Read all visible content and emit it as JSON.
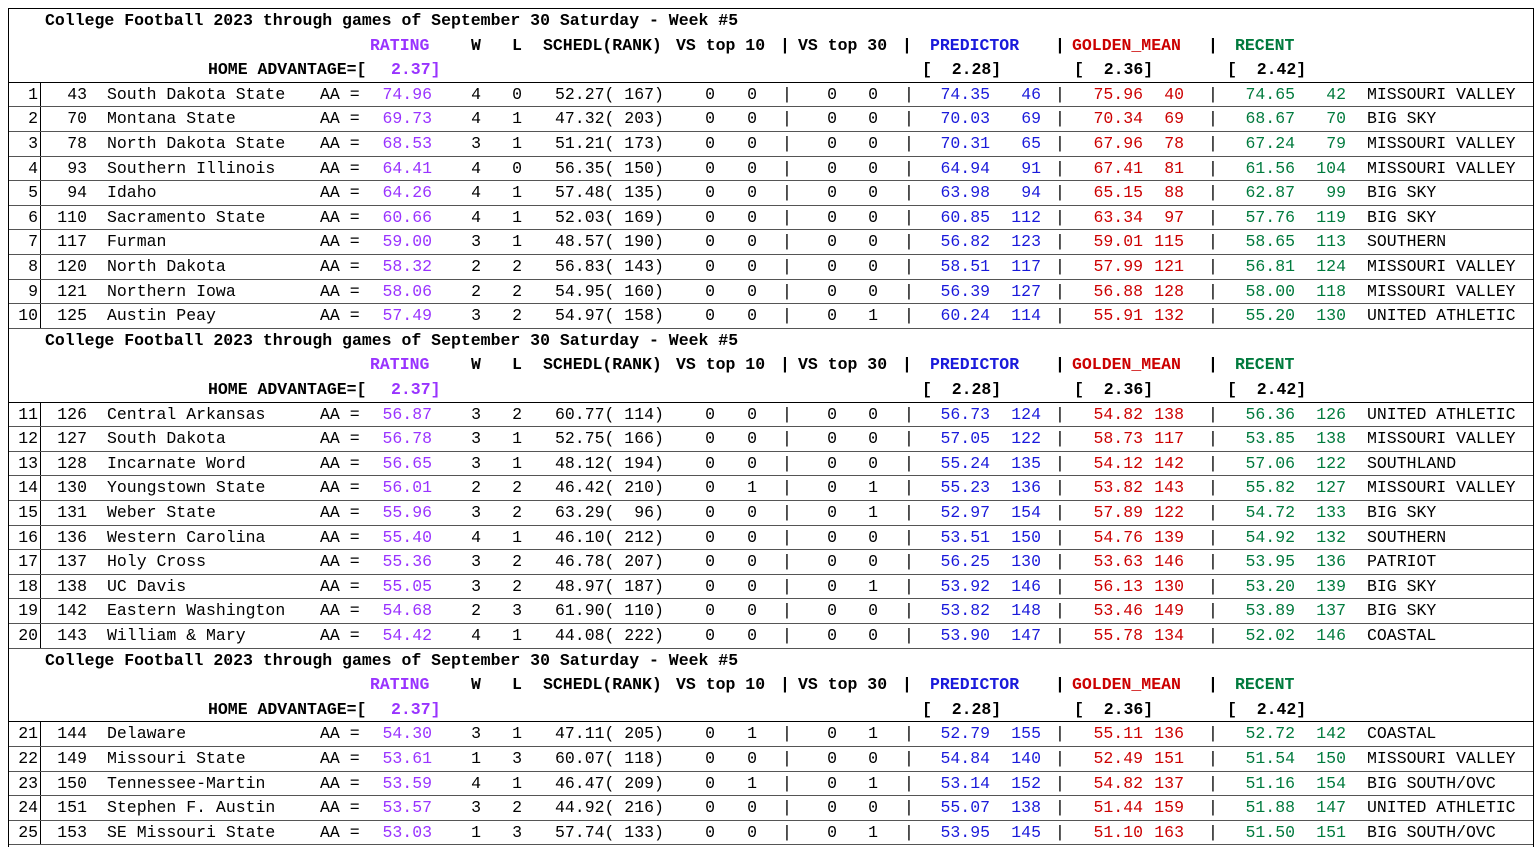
{
  "header": {
    "title": "College Football 2023 through games of September 30 Saturday - Week #5",
    "rating_label": "RATING",
    "w_label": "W",
    "l_label": "L",
    "schedl_label": "SCHEDL(RANK)",
    "vs10_label": "VS top 10",
    "vs30_label": "VS top 30",
    "predictor_label": "PREDICTOR",
    "golden_label": "GOLDEN_MEAN",
    "recent_label": "RECENT",
    "home_adv_label": "HOME ADVANTAGE=[",
    "home_adv_value": "2.37]",
    "predictor_adv": "[  2.28]",
    "golden_adv": "[  2.36]",
    "recent_adv": "[  2.42]",
    "pipe": "|",
    "aa": "AA ="
  },
  "colors": {
    "rating": "#9933ff",
    "predictor": "#1a1adb",
    "golden": "#cc0000",
    "recent": "#007a3d"
  },
  "rows": [
    [
      "1",
      "43",
      "South Dakota State",
      "74.96",
      "4",
      "0",
      "52.27( 167)",
      "0",
      "0",
      "0",
      "0",
      "74.35",
      "46",
      "75.96",
      "40",
      "74.65",
      "42",
      "MISSOURI VALLEY"
    ],
    [
      "2",
      "70",
      "Montana State",
      "69.73",
      "4",
      "1",
      "47.32( 203)",
      "0",
      "0",
      "0",
      "0",
      "70.03",
      "69",
      "70.34",
      "69",
      "68.67",
      "70",
      "BIG SKY"
    ],
    [
      "3",
      "78",
      "North Dakota State",
      "68.53",
      "3",
      "1",
      "51.21( 173)",
      "0",
      "0",
      "0",
      "0",
      "70.31",
      "65",
      "67.96",
      "78",
      "67.24",
      "79",
      "MISSOURI VALLEY"
    ],
    [
      "4",
      "93",
      "Southern Illinois",
      "64.41",
      "4",
      "0",
      "56.35( 150)",
      "0",
      "0",
      "0",
      "0",
      "64.94",
      "91",
      "67.41",
      "81",
      "61.56",
      "104",
      "MISSOURI VALLEY"
    ],
    [
      "5",
      "94",
      "Idaho",
      "64.26",
      "4",
      "1",
      "57.48( 135)",
      "0",
      "0",
      "0",
      "0",
      "63.98",
      "94",
      "65.15",
      "88",
      "62.87",
      "99",
      "BIG SKY"
    ],
    [
      "6",
      "110",
      "Sacramento State",
      "60.66",
      "4",
      "1",
      "52.03( 169)",
      "0",
      "0",
      "0",
      "0",
      "60.85",
      "112",
      "63.34",
      "97",
      "57.76",
      "119",
      "BIG SKY"
    ],
    [
      "7",
      "117",
      "Furman",
      "59.00",
      "3",
      "1",
      "48.57( 190)",
      "0",
      "0",
      "0",
      "0",
      "56.82",
      "123",
      "59.01",
      "115",
      "58.65",
      "113",
      "SOUTHERN"
    ],
    [
      "8",
      "120",
      "North Dakota",
      "58.32",
      "2",
      "2",
      "56.83( 143)",
      "0",
      "0",
      "0",
      "0",
      "58.51",
      "117",
      "57.99",
      "121",
      "56.81",
      "124",
      "MISSOURI VALLEY"
    ],
    [
      "9",
      "121",
      "Northern Iowa",
      "58.06",
      "2",
      "2",
      "54.95( 160)",
      "0",
      "0",
      "0",
      "0",
      "56.39",
      "127",
      "56.88",
      "128",
      "58.00",
      "118",
      "MISSOURI VALLEY"
    ],
    [
      "10",
      "125",
      "Austin Peay",
      "57.49",
      "3",
      "2",
      "54.97( 158)",
      "0",
      "0",
      "0",
      "1",
      "60.24",
      "114",
      "55.91",
      "132",
      "55.20",
      "130",
      "UNITED ATHLETIC"
    ],
    [
      "11",
      "126",
      "Central Arkansas",
      "56.87",
      "3",
      "2",
      "60.77( 114)",
      "0",
      "0",
      "0",
      "0",
      "56.73",
      "124",
      "54.82",
      "138",
      "56.36",
      "126",
      "UNITED ATHLETIC"
    ],
    [
      "12",
      "127",
      "South Dakota",
      "56.78",
      "3",
      "1",
      "52.75( 166)",
      "0",
      "0",
      "0",
      "0",
      "57.05",
      "122",
      "58.73",
      "117",
      "53.85",
      "138",
      "MISSOURI VALLEY"
    ],
    [
      "13",
      "128",
      "Incarnate Word",
      "56.65",
      "3",
      "1",
      "48.12( 194)",
      "0",
      "0",
      "0",
      "0",
      "55.24",
      "135",
      "54.12",
      "142",
      "57.06",
      "122",
      "SOUTHLAND"
    ],
    [
      "14",
      "130",
      "Youngstown State",
      "56.01",
      "2",
      "2",
      "46.42( 210)",
      "0",
      "1",
      "0",
      "1",
      "55.23",
      "136",
      "53.82",
      "143",
      "55.82",
      "127",
      "MISSOURI VALLEY"
    ],
    [
      "15",
      "131",
      "Weber State",
      "55.96",
      "3",
      "2",
      "63.29(  96)",
      "0",
      "0",
      "0",
      "1",
      "52.97",
      "154",
      "57.89",
      "122",
      "54.72",
      "133",
      "BIG SKY"
    ],
    [
      "16",
      "136",
      "Western Carolina",
      "55.40",
      "4",
      "1",
      "46.10( 212)",
      "0",
      "0",
      "0",
      "0",
      "53.51",
      "150",
      "54.76",
      "139",
      "54.92",
      "132",
      "SOUTHERN"
    ],
    [
      "17",
      "137",
      "Holy Cross",
      "55.36",
      "3",
      "2",
      "46.78( 207)",
      "0",
      "0",
      "0",
      "0",
      "56.25",
      "130",
      "53.63",
      "146",
      "53.95",
      "136",
      "PATRIOT"
    ],
    [
      "18",
      "138",
      "UC Davis",
      "55.05",
      "3",
      "2",
      "48.97( 187)",
      "0",
      "0",
      "0",
      "1",
      "53.92",
      "146",
      "56.13",
      "130",
      "53.20",
      "139",
      "BIG SKY"
    ],
    [
      "19",
      "142",
      "Eastern Washington",
      "54.68",
      "2",
      "3",
      "61.90( 110)",
      "0",
      "0",
      "0",
      "0",
      "53.82",
      "148",
      "53.46",
      "149",
      "53.89",
      "137",
      "BIG SKY"
    ],
    [
      "20",
      "143",
      "William & Mary",
      "54.42",
      "4",
      "1",
      "44.08( 222)",
      "0",
      "0",
      "0",
      "0",
      "53.90",
      "147",
      "55.78",
      "134",
      "52.02",
      "146",
      "COASTAL"
    ],
    [
      "21",
      "144",
      "Delaware",
      "54.30",
      "3",
      "1",
      "47.11( 205)",
      "0",
      "1",
      "0",
      "1",
      "52.79",
      "155",
      "55.11",
      "136",
      "52.72",
      "142",
      "COASTAL"
    ],
    [
      "22",
      "149",
      "Missouri State",
      "53.61",
      "1",
      "3",
      "60.07( 118)",
      "0",
      "0",
      "0",
      "0",
      "54.84",
      "140",
      "52.49",
      "151",
      "51.54",
      "150",
      "MISSOURI VALLEY"
    ],
    [
      "23",
      "150",
      "Tennessee-Martin",
      "53.59",
      "4",
      "1",
      "46.47( 209)",
      "0",
      "1",
      "0",
      "1",
      "53.14",
      "152",
      "54.82",
      "137",
      "51.16",
      "154",
      "BIG SOUTH/OVC"
    ],
    [
      "24",
      "151",
      "Stephen F. Austin",
      "53.57",
      "3",
      "2",
      "44.92( 216)",
      "0",
      "0",
      "0",
      "0",
      "55.07",
      "138",
      "51.44",
      "159",
      "51.88",
      "147",
      "UNITED ATHLETIC"
    ],
    [
      "25",
      "153",
      "SE Missouri State",
      "53.03",
      "1",
      "3",
      "57.74( 133)",
      "0",
      "0",
      "0",
      "1",
      "53.95",
      "145",
      "51.10",
      "163",
      "51.50",
      "151",
      "BIG SOUTH/OVC"
    ]
  ]
}
